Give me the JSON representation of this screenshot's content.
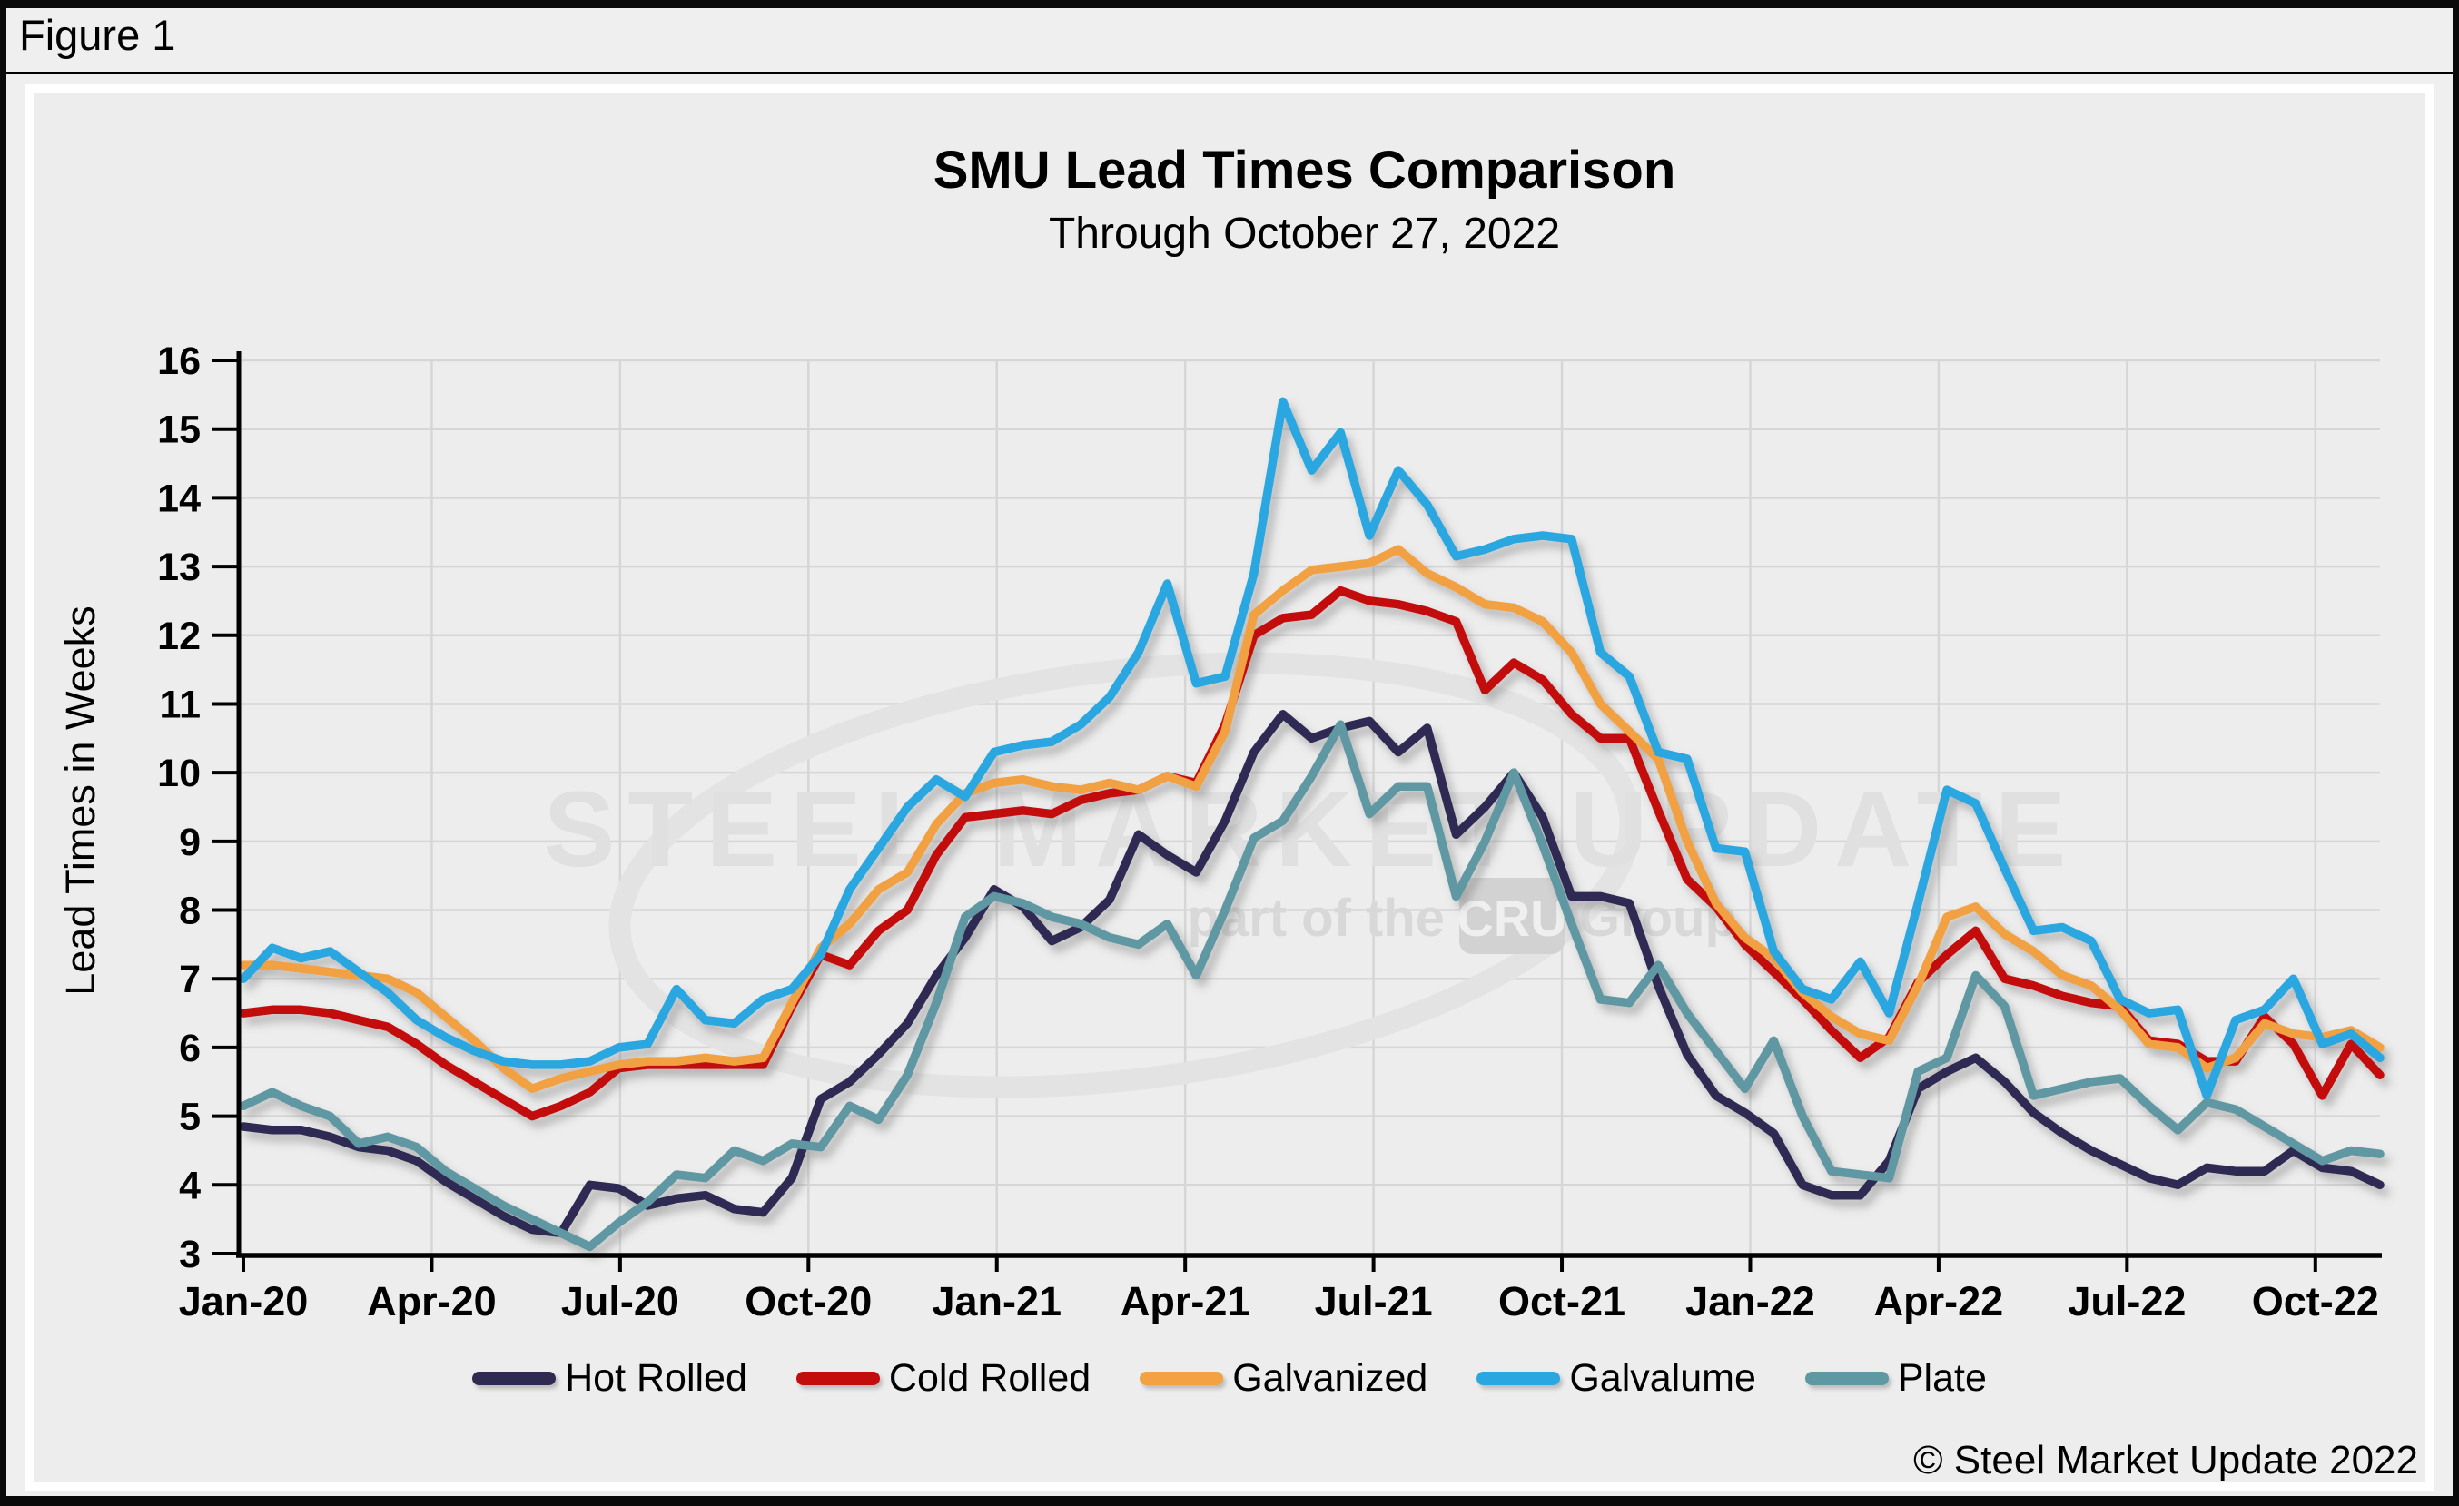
{
  "window": {
    "figure_label": "Figure 1"
  },
  "chart": {
    "title": "SMU Lead Times Comparison",
    "subtitle": "Through October 27, 2022",
    "y_axis_title": "Lead Times in Weeks",
    "copyright": "© Steel Market Update 2022",
    "watermark": {
      "line1": "STEEL MARKET UPDATE",
      "part": "part of the",
      "cru": "CRU",
      "group": "Group"
    }
  },
  "chart_data": {
    "type": "line",
    "title": "SMU Lead Times Comparison",
    "subtitle": "Through October 27, 2022",
    "ylabel": "Lead Times in Weeks",
    "ylim": [
      3,
      16
    ],
    "y_ticks": [
      3,
      4,
      5,
      6,
      7,
      8,
      9,
      10,
      11,
      12,
      13,
      14,
      15,
      16
    ],
    "x_tick_labels": [
      "Jan-20",
      "Apr-20",
      "Jul-20",
      "Oct-20",
      "Jan-21",
      "Apr-21",
      "Jul-21",
      "Oct-21",
      "Jan-22",
      "Apr-22",
      "Jul-22",
      "Oct-22"
    ],
    "x_months_between_ticks": 3,
    "x_months_total": 34.03,
    "cadence": "biweekly survey readings, Jan 2020 through Oct 27 2022",
    "grid": true,
    "legend_position": "bottom",
    "colors": {
      "grid": "#d6d6d6",
      "axis": "#000000",
      "watermark": "#e0e0e0",
      "background": "#ededed"
    },
    "series": [
      {
        "name": "Hot Rolled",
        "color": "#2E2A52",
        "values": [
          4.85,
          4.8,
          4.8,
          4.7,
          4.55,
          4.5,
          4.35,
          4.05,
          3.8,
          3.55,
          3.35,
          3.3,
          4.0,
          3.95,
          3.7,
          3.8,
          3.85,
          3.65,
          3.6,
          4.1,
          5.25,
          5.5,
          5.9,
          6.35,
          7.05,
          7.6,
          8.3,
          8.05,
          7.55,
          7.75,
          8.15,
          9.1,
          8.8,
          8.55,
          9.3,
          10.3,
          10.85,
          10.5,
          10.65,
          10.75,
          10.3,
          10.65,
          9.1,
          9.5,
          10.0,
          9.35,
          8.2,
          8.2,
          8.1,
          6.9,
          5.9,
          5.3,
          5.05,
          4.75,
          4.0,
          3.85,
          3.85,
          4.35,
          5.4,
          5.65,
          5.85,
          5.5,
          5.05,
          4.75,
          4.5,
          4.3,
          4.1,
          4.0,
          4.25,
          4.2,
          4.2,
          4.5,
          4.25,
          4.2,
          4.0
        ]
      },
      {
        "name": "Cold Rolled",
        "color": "#C30D0D",
        "values": [
          6.5,
          6.55,
          6.55,
          6.5,
          6.4,
          6.3,
          6.05,
          5.75,
          5.5,
          5.25,
          5.0,
          5.15,
          5.35,
          5.7,
          5.75,
          5.75,
          5.75,
          5.75,
          5.75,
          6.6,
          7.35,
          7.2,
          7.7,
          8.0,
          8.8,
          9.35,
          9.4,
          9.45,
          9.4,
          9.6,
          9.7,
          9.75,
          9.95,
          9.85,
          10.7,
          12.0,
          12.25,
          12.3,
          12.65,
          12.5,
          12.45,
          12.35,
          12.2,
          11.2,
          11.6,
          11.35,
          10.85,
          10.5,
          10.5,
          9.45,
          8.45,
          8.05,
          7.5,
          7.1,
          6.7,
          6.25,
          5.85,
          6.15,
          6.95,
          7.35,
          7.7,
          7.0,
          6.9,
          6.75,
          6.65,
          6.6,
          6.1,
          6.05,
          5.8,
          5.8,
          6.45,
          6.05,
          5.3,
          6.05,
          5.6
        ]
      },
      {
        "name": "Galvanized",
        "color": "#F2A143",
        "values": [
          7.2,
          7.2,
          7.15,
          7.1,
          7.05,
          7.0,
          6.8,
          6.45,
          6.1,
          5.7,
          5.4,
          5.55,
          5.65,
          5.75,
          5.8,
          5.8,
          5.85,
          5.8,
          5.85,
          6.65,
          7.45,
          7.8,
          8.3,
          8.55,
          9.25,
          9.7,
          9.85,
          9.9,
          9.8,
          9.75,
          9.85,
          9.75,
          9.95,
          9.8,
          10.6,
          12.3,
          12.65,
          12.95,
          13.0,
          13.05,
          13.25,
          12.9,
          12.7,
          12.45,
          12.4,
          12.2,
          11.75,
          11.0,
          10.6,
          10.2,
          9.0,
          8.1,
          7.6,
          7.3,
          6.8,
          6.45,
          6.2,
          6.1,
          6.9,
          7.9,
          8.05,
          7.65,
          7.4,
          7.05,
          6.9,
          6.55,
          6.05,
          6.0,
          5.7,
          5.85,
          6.35,
          6.2,
          6.15,
          6.25,
          6.0
        ]
      },
      {
        "name": "Galvalume",
        "color": "#2AA7E0",
        "values": [
          7.0,
          7.45,
          7.3,
          7.4,
          7.1,
          6.8,
          6.4,
          6.15,
          5.95,
          5.8,
          5.75,
          5.75,
          5.8,
          6.0,
          6.05,
          6.85,
          6.4,
          6.35,
          6.7,
          6.85,
          7.35,
          8.3,
          8.9,
          9.5,
          9.9,
          9.65,
          10.3,
          10.4,
          10.45,
          10.7,
          11.1,
          11.75,
          12.75,
          11.3,
          11.4,
          12.9,
          15.4,
          14.4,
          14.95,
          13.45,
          14.4,
          13.9,
          13.15,
          13.25,
          13.4,
          13.45,
          13.4,
          11.75,
          11.4,
          10.3,
          10.2,
          8.9,
          8.85,
          7.4,
          6.85,
          6.7,
          7.25,
          6.5,
          8.1,
          9.75,
          9.55,
          8.6,
          7.7,
          7.75,
          7.55,
          6.7,
          6.5,
          6.55,
          5.3,
          6.4,
          6.55,
          7.0,
          6.05,
          6.2,
          5.85
        ]
      },
      {
        "name": "Plate",
        "color": "#5E98A2",
        "values": [
          5.15,
          5.35,
          5.15,
          5.0,
          4.6,
          4.7,
          4.55,
          4.2,
          3.95,
          3.7,
          3.5,
          3.3,
          3.1,
          3.45,
          3.75,
          4.15,
          4.1,
          4.5,
          4.35,
          4.6,
          4.55,
          5.15,
          4.95,
          5.6,
          6.65,
          7.9,
          8.2,
          8.1,
          7.9,
          7.8,
          7.6,
          7.5,
          7.8,
          7.05,
          8.0,
          9.05,
          9.3,
          9.95,
          10.7,
          9.4,
          9.8,
          9.8,
          8.2,
          9.0,
          10.0,
          8.95,
          7.8,
          6.7,
          6.65,
          7.2,
          6.5,
          5.95,
          5.4,
          6.1,
          5.0,
          4.2,
          4.15,
          4.1,
          5.65,
          5.85,
          7.05,
          6.6,
          5.3,
          5.4,
          5.5,
          5.55,
          5.15,
          4.8,
          5.2,
          5.1,
          4.85,
          4.6,
          4.35,
          4.5,
          4.45
        ]
      }
    ]
  }
}
